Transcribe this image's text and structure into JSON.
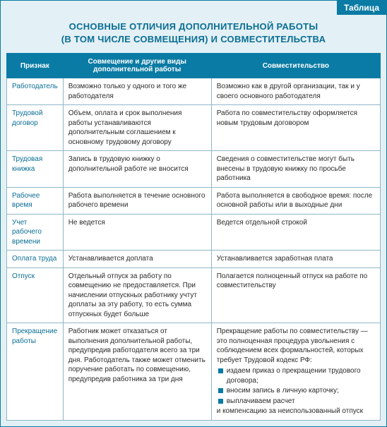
{
  "tab_label": "Таблица",
  "title_line1": "ОСНОВНЫЕ ОТЛИЧИЯ ДОПОЛНИТЕЛЬНОЙ РАБОТЫ",
  "title_line2": "(В ТОМ ЧИСЛЕ СОВМЕЩЕНИЯ) И СОВМЕСТИТЕЛЬСТВА",
  "columns": {
    "attr": "Признак",
    "combo": "Совмещение и другие виды дополнительной работы",
    "concur": "Совместительство"
  },
  "rows": [
    {
      "attr": "Работодатель",
      "combo": "Возможно только у одного и того же работодателя",
      "concur": "Возможно как в другой организации, так и у своего основного работодателя"
    },
    {
      "attr": "Трудовой договор",
      "combo": "Объем, оплата и срок выполнения работы устанавливаются дополнительным соглашением к основному трудовому договору",
      "concur": "Работа по совместительству оформляется новым трудовым договором"
    },
    {
      "attr": "Трудовая книжка",
      "combo": "Запись в трудовую книжку о дополнительной работе не вносится",
      "concur": "Сведения о совместительстве могут быть внесены в трудовую книжку по просьбе работника"
    },
    {
      "attr": "Рабочее время",
      "combo": "Работа выполняется в течение основного рабочего времени",
      "concur": "Работа выполняется в свободное время: после основной работы или в выходные дни"
    },
    {
      "attr": "Учет рабочего времени",
      "combo": "Не ведется",
      "concur": "Ведется отдельной строкой"
    },
    {
      "attr": "Оплата труда",
      "combo": "Устанавливается доплата",
      "concur": "Устанавливается заработная плата"
    },
    {
      "attr": "Отпуск",
      "combo": "Отдельный отпуск за работу по совмещению не предоставляется. При начислении отпускных работнику учтут доплаты за эту работу, то есть сумма отпускных будет больше",
      "concur": "Полагается полноценный отпуск на работе по совместительству"
    }
  ],
  "last_row": {
    "attr": "Прекращение работы",
    "combo": "Работник может отказаться от выполнения дополнительной работы, предупредив работодателя всего за три дня. Работодатель также может отменить поручение работать по совмещению, предупредив работника за три дня",
    "concur_before": "Прекращение работы по совместительству — это полноценная процедура увольнения с соблюдением всех формальностей, которых требует Трудовой кодекс РФ:",
    "concur_bullets": [
      "издаем приказ о прекращении трудового договора;",
      "вносим запись в личную карточку;",
      "выплачиваем расчет"
    ],
    "concur_after": "и компенсацию за неиспользованный отпуск"
  }
}
